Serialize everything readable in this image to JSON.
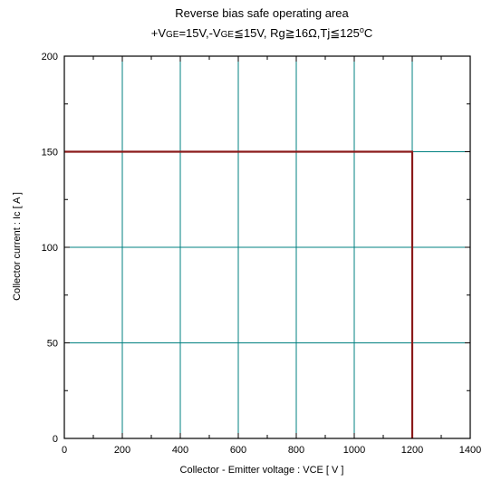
{
  "chart_data": {
    "type": "line",
    "title": "Reverse bias safe operating area",
    "subtitle": {
      "p1": "+V",
      "p2": "GE",
      "p3": "=15V,-V",
      "p4": "GE",
      "p5": "≦15V, Rg",
      "p6": "≧16Ω,Tj",
      "p7": "≦125",
      "p8": "o",
      "p9": "C"
    },
    "xlabel": "Collector - Emitter voltage  :  VCE  [ V ]",
    "ylabel": "Collector current  : Ic  [ A ]",
    "xlim": [
      0,
      1400
    ],
    "ylim": [
      0,
      200
    ],
    "x_ticks": [
      0,
      200,
      400,
      600,
      800,
      1000,
      1200,
      1400
    ],
    "y_ticks": [
      0,
      50,
      100,
      150,
      200
    ],
    "x_tick_labels": [
      "0",
      "200",
      "400",
      "600",
      "800",
      "1000",
      "1200",
      "1400"
    ],
    "y_tick_labels": [
      "0",
      "50",
      "100",
      "150",
      "200"
    ],
    "grid": true,
    "grid_color": "#008080",
    "series": [
      {
        "color": "#8b1a1a",
        "points": [
          [
            0,
            150
          ],
          [
            1200,
            150
          ],
          [
            1200,
            0
          ]
        ]
      }
    ]
  }
}
